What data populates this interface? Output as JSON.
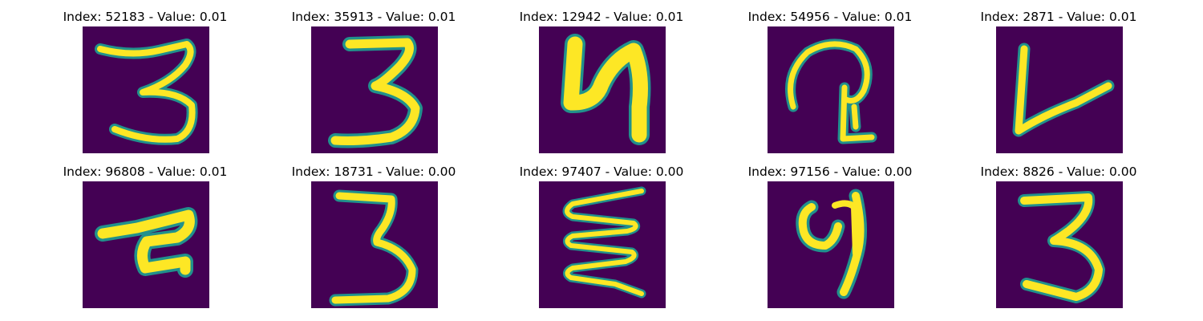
{
  "colors": {
    "background": "#440154",
    "stroke_core": "#fde725",
    "stroke_edge": "#21918c"
  },
  "panels": [
    {
      "title": "Index: 52183 - Value: 0.01",
      "glyph": "3"
    },
    {
      "title": "Index: 35913 - Value: 0.01",
      "glyph": "3"
    },
    {
      "title": "Index: 12942 - Value: 0.01",
      "glyph": "4"
    },
    {
      "title": "Index: 54956 - Value: 0.01",
      "glyph": "loop"
    },
    {
      "title": "Index: 2871 - Value: 0.01",
      "glyph": "v"
    },
    {
      "title": "Index: 96808 - Value: 0.01",
      "glyph": "blob"
    },
    {
      "title": "Index: 18731 - Value: 0.00",
      "glyph": "3"
    },
    {
      "title": "Index: 97407 - Value: 0.00",
      "glyph": "zigzag"
    },
    {
      "title": "Index: 97156 - Value: 0.00",
      "glyph": "9"
    },
    {
      "title": "Index: 8826 - Value: 0.00",
      "glyph": "3"
    }
  ]
}
